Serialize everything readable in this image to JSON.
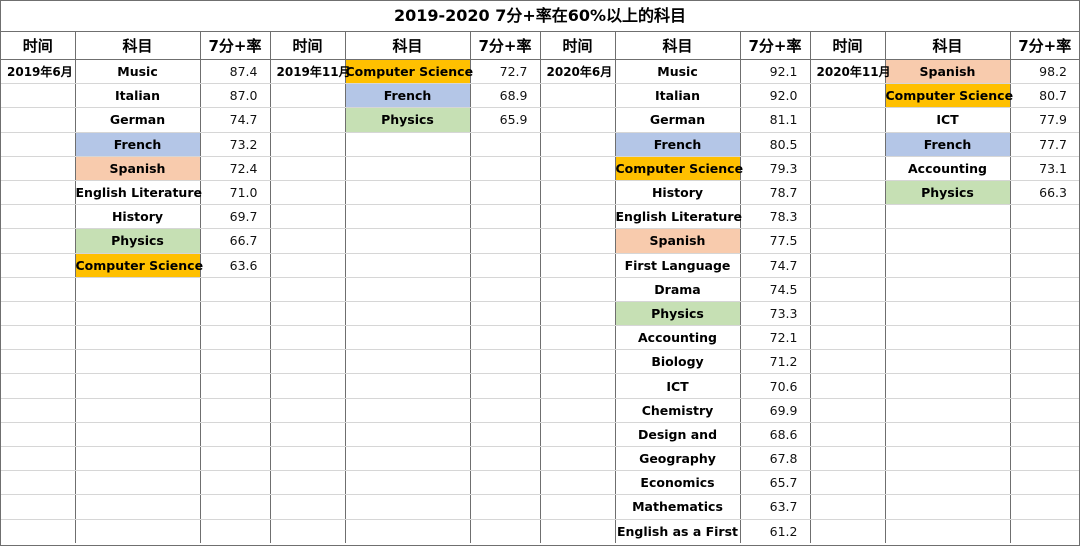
{
  "title": "2019-2020 7分+率在60%以上的科目",
  "headers": {
    "time": "时间",
    "subject": "科目",
    "rate": "7分+率"
  },
  "colors": {
    "blue": "#b4c6e7",
    "peach": "#f8cbad",
    "green": "#c6e0b4",
    "orange": "#ffc000"
  },
  "groups": [
    {
      "period": "2019年6月",
      "rows": [
        {
          "subject": "Music",
          "rate": "87.4",
          "color": ""
        },
        {
          "subject": "Italian",
          "rate": "87.0",
          "color": ""
        },
        {
          "subject": "German",
          "rate": "74.7",
          "color": ""
        },
        {
          "subject": "French",
          "rate": "73.2",
          "color": "blue"
        },
        {
          "subject": "Spanish",
          "rate": "72.4",
          "color": "peach"
        },
        {
          "subject": "English Literature",
          "rate": "71.0",
          "color": ""
        },
        {
          "subject": "History",
          "rate": "69.7",
          "color": ""
        },
        {
          "subject": "Physics",
          "rate": "66.7",
          "color": "green"
        },
        {
          "subject": "Computer Science",
          "rate": "63.6",
          "color": "orange"
        }
      ]
    },
    {
      "period": "2019年11月",
      "rows": [
        {
          "subject": "Computer Science",
          "rate": "72.7",
          "color": "orange"
        },
        {
          "subject": "French",
          "rate": "68.9",
          "color": "blue"
        },
        {
          "subject": "Physics",
          "rate": "65.9",
          "color": "green"
        }
      ]
    },
    {
      "period": "2020年6月",
      "rows": [
        {
          "subject": "Music",
          "rate": "92.1",
          "color": ""
        },
        {
          "subject": "Italian",
          "rate": "92.0",
          "color": ""
        },
        {
          "subject": "German",
          "rate": "81.1",
          "color": ""
        },
        {
          "subject": "French",
          "rate": "80.5",
          "color": "blue"
        },
        {
          "subject": "Computer Science",
          "rate": "79.3",
          "color": "orange"
        },
        {
          "subject": "History",
          "rate": "78.7",
          "color": ""
        },
        {
          "subject": "English Literature",
          "rate": "78.3",
          "color": ""
        },
        {
          "subject": "Spanish",
          "rate": "77.5",
          "color": "peach"
        },
        {
          "subject": "First Language",
          "rate": "74.7",
          "color": ""
        },
        {
          "subject": "Drama",
          "rate": "74.5",
          "color": ""
        },
        {
          "subject": "Physics",
          "rate": "73.3",
          "color": "green"
        },
        {
          "subject": "Accounting",
          "rate": "72.1",
          "color": ""
        },
        {
          "subject": "Biology",
          "rate": "71.2",
          "color": ""
        },
        {
          "subject": "ICT",
          "rate": "70.6",
          "color": ""
        },
        {
          "subject": "Chemistry",
          "rate": "69.9",
          "color": ""
        },
        {
          "subject": "Design and",
          "rate": "68.6",
          "color": ""
        },
        {
          "subject": "Geography",
          "rate": "67.8",
          "color": ""
        },
        {
          "subject": "Economics",
          "rate": "65.7",
          "color": ""
        },
        {
          "subject": "Mathematics",
          "rate": "63.7",
          "color": ""
        },
        {
          "subject": "English as a First",
          "rate": "61.2",
          "color": ""
        }
      ]
    },
    {
      "period": "2020年11月",
      "rows": [
        {
          "subject": "Spanish",
          "rate": "98.2",
          "color": "peach"
        },
        {
          "subject": "Computer Science",
          "rate": "80.7",
          "color": "orange"
        },
        {
          "subject": "ICT",
          "rate": "77.9",
          "color": ""
        },
        {
          "subject": "French",
          "rate": "77.7",
          "color": "blue"
        },
        {
          "subject": "Accounting",
          "rate": "73.1",
          "color": ""
        },
        {
          "subject": "Physics",
          "rate": "66.3",
          "color": "green"
        }
      ]
    }
  ]
}
